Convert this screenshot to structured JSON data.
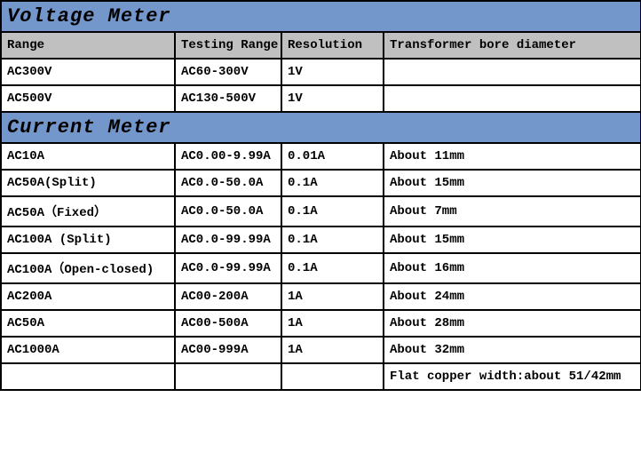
{
  "colors": {
    "section_header_bg": "#7396cb",
    "column_header_bg": "#c0c0c0",
    "row_bg": "#ffffff",
    "border": "#000000"
  },
  "sections": [
    {
      "title": "Voltage Meter",
      "columns": [
        "Range",
        "Testing Range",
        "Resolution",
        "Transformer bore diameter"
      ],
      "rows": [
        [
          "AC300V",
          "AC60-300V",
          "1V",
          ""
        ],
        [
          "AC500V",
          "AC130-500V",
          "1V",
          ""
        ]
      ]
    },
    {
      "title": "Current Meter",
      "columns": null,
      "rows": [
        [
          "AC10A",
          "AC0.00-9.99A",
          "0.01A",
          "About 11mm"
        ],
        [
          "AC50A(Split)",
          "AC0.0-50.0A",
          "0.1A",
          "About 15mm"
        ],
        [
          "AC50A（Fixed）",
          "AC0.0-50.0A",
          "0.1A",
          "About 7mm"
        ],
        [
          "AC100A (Split)",
          "AC0.0-99.99A",
          "0.1A",
          "About 15mm"
        ],
        [
          "AC100A（Open-closed)",
          "AC0.0-99.99A",
          "0.1A",
          "About 16mm"
        ],
        [
          "AC200A",
          "AC00-200A",
          "1A",
          "About 24mm"
        ],
        [
          "AC50A",
          "AC00-500A",
          "1A",
          "About 28mm"
        ],
        [
          "AC1000A",
          "AC00-999A",
          "1A",
          "About 32mm"
        ],
        [
          "",
          "",
          "",
          "Flat copper width:about 51/42mm"
        ]
      ]
    }
  ]
}
